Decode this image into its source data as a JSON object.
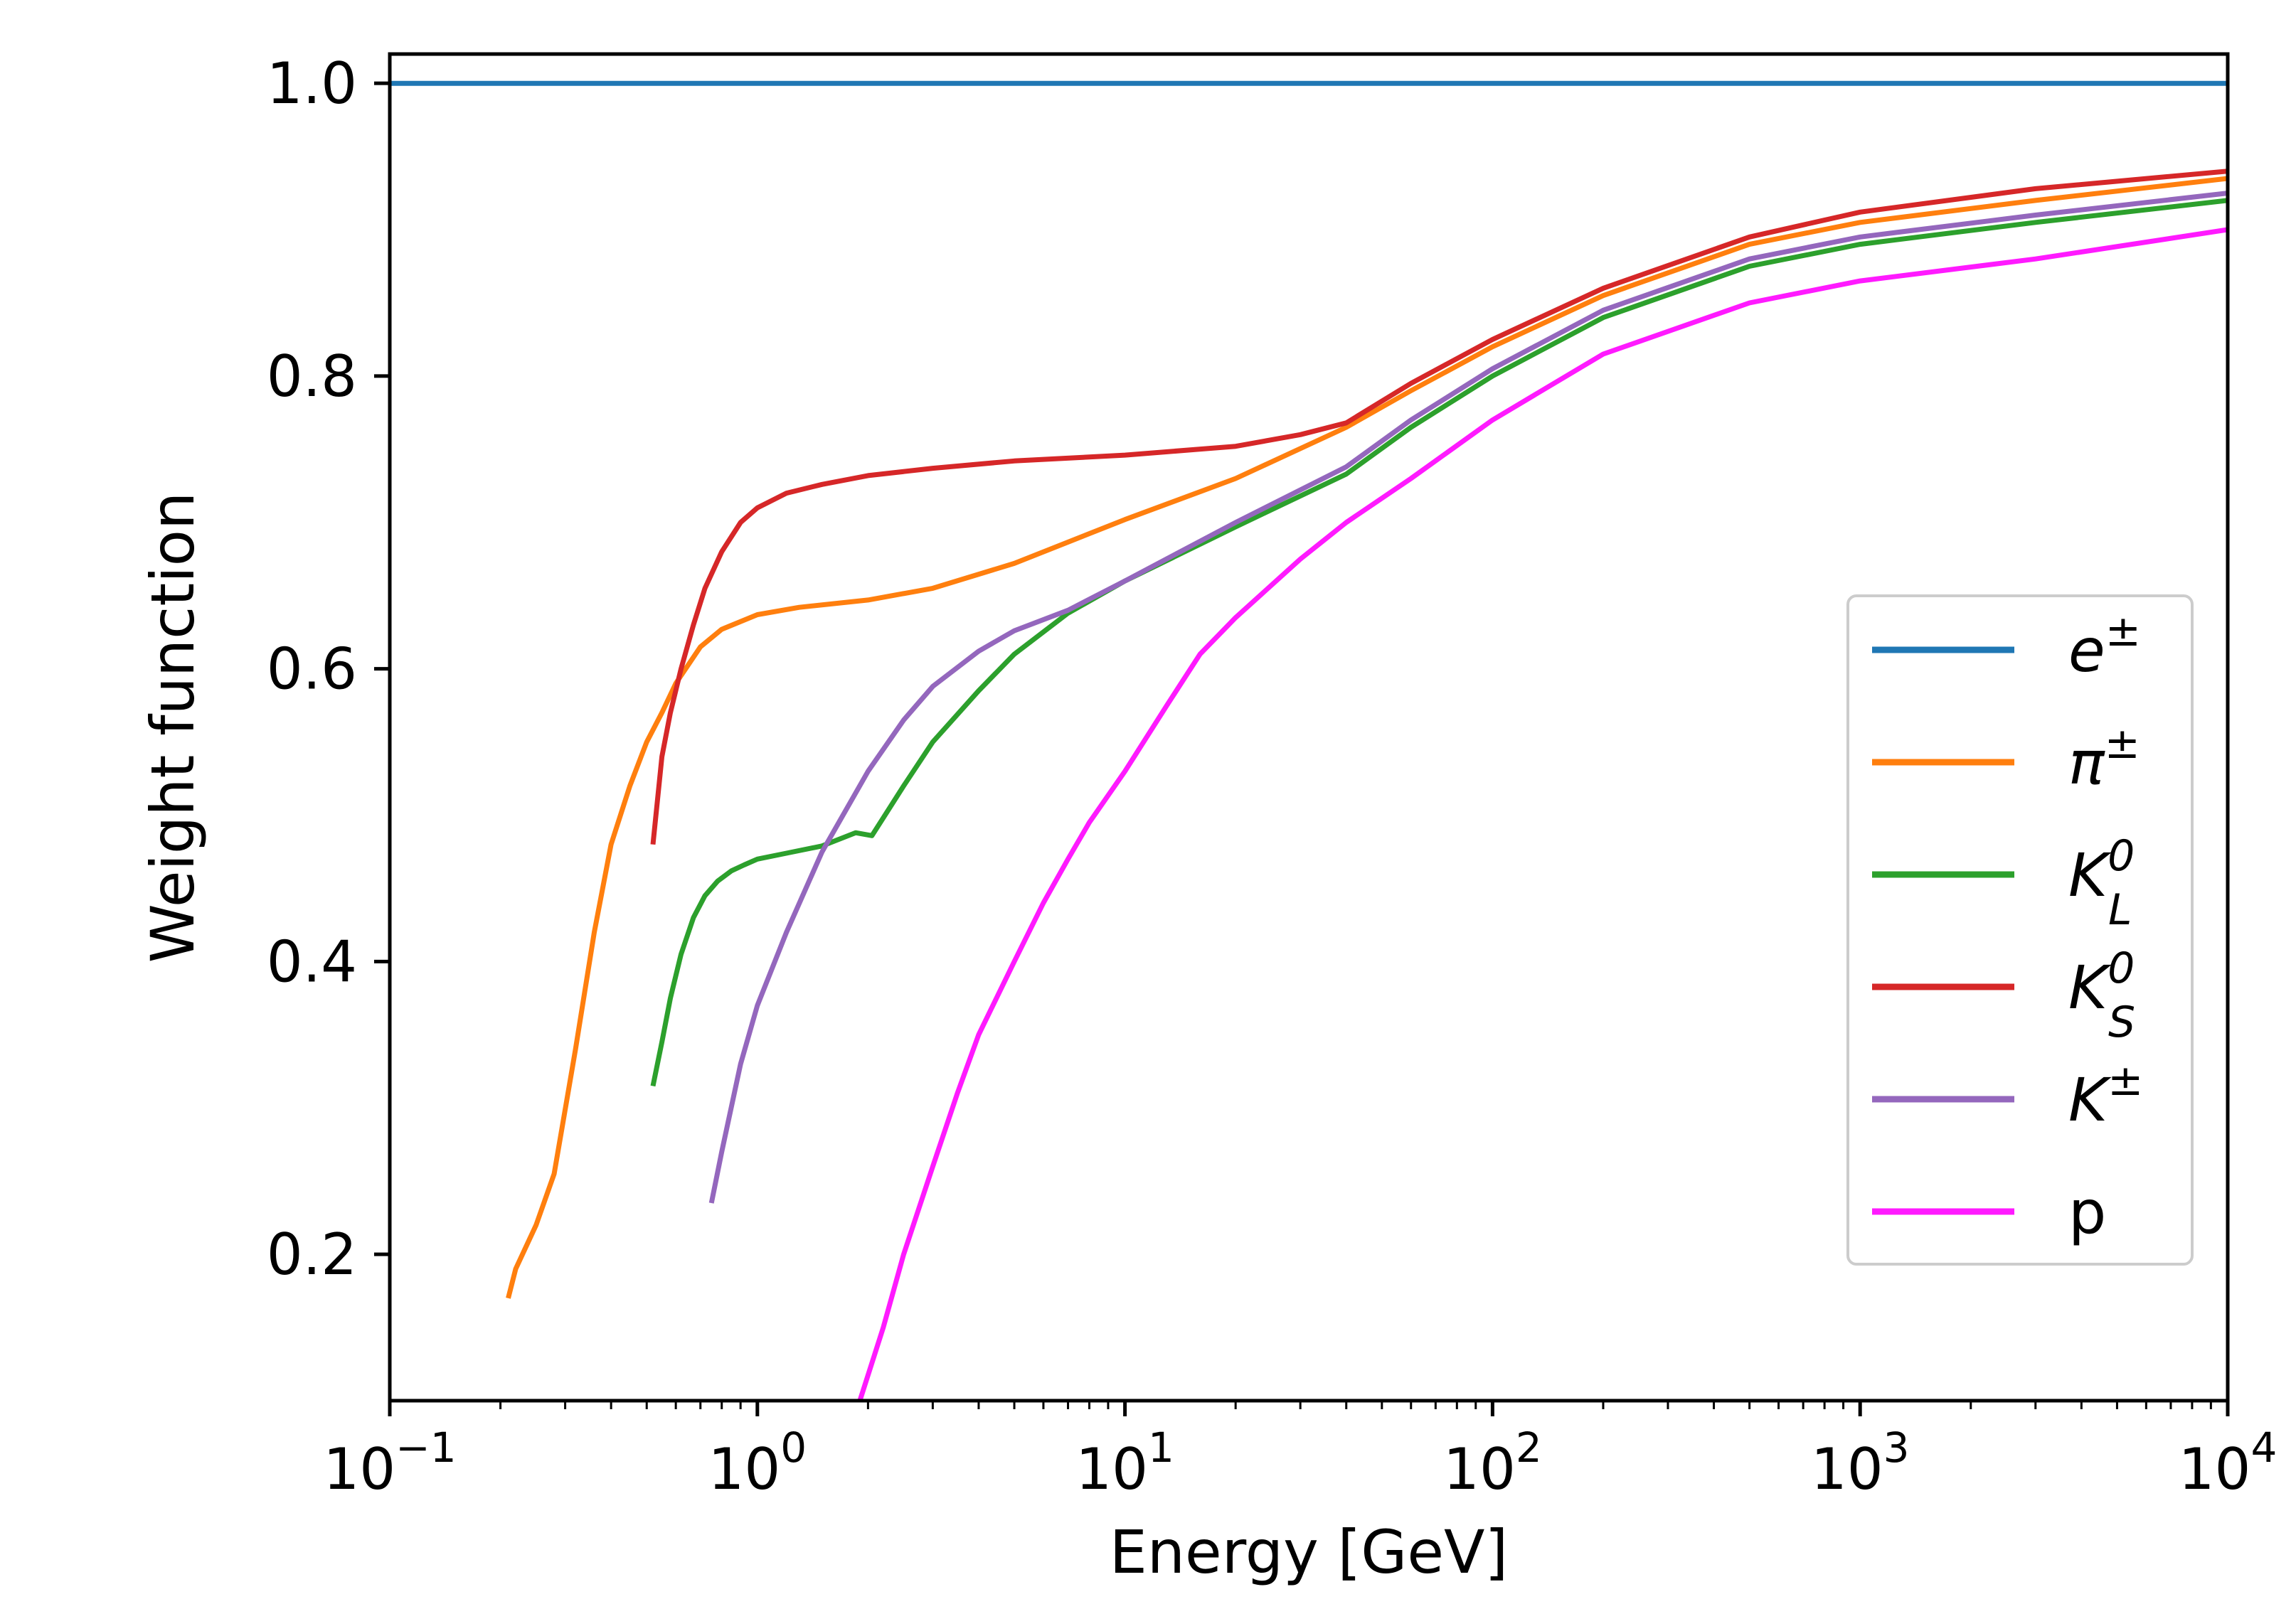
{
  "chart_data": {
    "type": "line",
    "title": "",
    "xlabel": "Energy [GeV]",
    "ylabel": "Weight function",
    "xscale": "log",
    "xlim": [
      0.1,
      10000
    ],
    "ylim": [
      0.1,
      1.02
    ],
    "grid": false,
    "legend_position": "center-right",
    "xticks": [
      {
        "value": 0.1,
        "base": "10",
        "exp": "−1"
      },
      {
        "value": 1,
        "base": "10",
        "exp": "0"
      },
      {
        "value": 10,
        "base": "10",
        "exp": "1"
      },
      {
        "value": 100,
        "base": "10",
        "exp": "2"
      },
      {
        "value": 1000,
        "base": "10",
        "exp": "3"
      },
      {
        "value": 10000,
        "base": "10",
        "exp": "4"
      }
    ],
    "yticks": [
      {
        "value": 0.2,
        "label": "0.2"
      },
      {
        "value": 0.4,
        "label": "0.4"
      },
      {
        "value": 0.6,
        "label": "0.6"
      },
      {
        "value": 0.8,
        "label": "0.8"
      },
      {
        "value": 1.0,
        "label": "1.0"
      }
    ],
    "series": [
      {
        "name": "e±",
        "label_base": "e",
        "label_sup": "±",
        "label_sub": "",
        "italic": true,
        "color": "#1f77b4",
        "x": [
          0.1,
          10000
        ],
        "y": [
          1.0,
          1.0
        ]
      },
      {
        "name": "π±",
        "label_base": "π",
        "label_sup": "±",
        "label_sub": "",
        "italic": true,
        "color": "#ff7f0e",
        "x": [
          0.21,
          0.22,
          0.25,
          0.28,
          0.32,
          0.36,
          0.4,
          0.45,
          0.5,
          0.55,
          0.6,
          0.7,
          0.8,
          1.0,
          1.3,
          2.0,
          3.0,
          5.0,
          10,
          20,
          40,
          60,
          100,
          200,
          500,
          1000,
          3000,
          10000
        ],
        "y": [
          0.17,
          0.19,
          0.22,
          0.255,
          0.34,
          0.42,
          0.48,
          0.52,
          0.55,
          0.57,
          0.59,
          0.615,
          0.627,
          0.637,
          0.642,
          0.647,
          0.655,
          0.672,
          0.702,
          0.73,
          0.765,
          0.79,
          0.82,
          0.855,
          0.89,
          0.905,
          0.92,
          0.935
        ]
      },
      {
        "name": "K⁰L",
        "label_base": "K",
        "label_sup": "0",
        "label_sub": "L",
        "italic": true,
        "color": "#2ca02c",
        "x": [
          0.52,
          0.55,
          0.58,
          0.62,
          0.67,
          0.72,
          0.78,
          0.85,
          0.92,
          1.0,
          1.2,
          1.5,
          1.85,
          2.05,
          2.5,
          3.0,
          4.0,
          5.0,
          7.0,
          10,
          20,
          40,
          60,
          100,
          200,
          500,
          1000,
          3000,
          10000
        ],
        "y": [
          0.315,
          0.345,
          0.375,
          0.405,
          0.43,
          0.445,
          0.455,
          0.462,
          0.466,
          0.47,
          0.474,
          0.479,
          0.488,
          0.486,
          0.52,
          0.55,
          0.585,
          0.61,
          0.638,
          0.66,
          0.697,
          0.733,
          0.765,
          0.8,
          0.84,
          0.875,
          0.89,
          0.905,
          0.92
        ]
      },
      {
        "name": "K⁰S",
        "label_base": "K",
        "label_sup": "0",
        "label_sub": "S",
        "italic": true,
        "color": "#d62728",
        "x": [
          0.52,
          0.55,
          0.58,
          0.62,
          0.67,
          0.72,
          0.8,
          0.9,
          1.0,
          1.2,
          1.5,
          2.0,
          3.0,
          5.0,
          10,
          20,
          30,
          40,
          60,
          100,
          200,
          500,
          1000,
          3000,
          10000
        ],
        "y": [
          0.48,
          0.54,
          0.57,
          0.6,
          0.63,
          0.655,
          0.68,
          0.7,
          0.71,
          0.72,
          0.726,
          0.732,
          0.737,
          0.742,
          0.746,
          0.752,
          0.76,
          0.768,
          0.795,
          0.825,
          0.86,
          0.895,
          0.912,
          0.928,
          0.94
        ]
      },
      {
        "name": "K±",
        "label_base": "K",
        "label_sup": "±",
        "label_sub": "",
        "italic": true,
        "color": "#9467bd",
        "x": [
          0.75,
          0.8,
          0.9,
          1.0,
          1.2,
          1.5,
          2.0,
          2.5,
          3.0,
          4.0,
          5.0,
          7.0,
          10,
          20,
          40,
          60,
          100,
          200,
          500,
          1000,
          3000,
          10000
        ],
        "y": [
          0.235,
          0.27,
          0.33,
          0.37,
          0.42,
          0.475,
          0.53,
          0.565,
          0.588,
          0.612,
          0.626,
          0.64,
          0.66,
          0.7,
          0.738,
          0.77,
          0.805,
          0.845,
          0.88,
          0.895,
          0.91,
          0.925
        ]
      },
      {
        "name": "p",
        "label_base": "p",
        "label_sup": "",
        "label_sub": "",
        "italic": false,
        "color": "#ff1aff",
        "x": [
          1.9,
          2.2,
          2.5,
          3.0,
          3.5,
          4.0,
          5.0,
          6.0,
          7.0,
          8.0,
          10,
          13,
          16,
          20,
          30,
          40,
          60,
          100,
          200,
          500,
          1000,
          3000,
          10000
        ],
        "y": [
          0.1,
          0.15,
          0.2,
          0.26,
          0.31,
          0.35,
          0.4,
          0.44,
          0.47,
          0.495,
          0.53,
          0.575,
          0.61,
          0.635,
          0.675,
          0.7,
          0.73,
          0.77,
          0.815,
          0.85,
          0.865,
          0.88,
          0.9
        ]
      }
    ]
  }
}
